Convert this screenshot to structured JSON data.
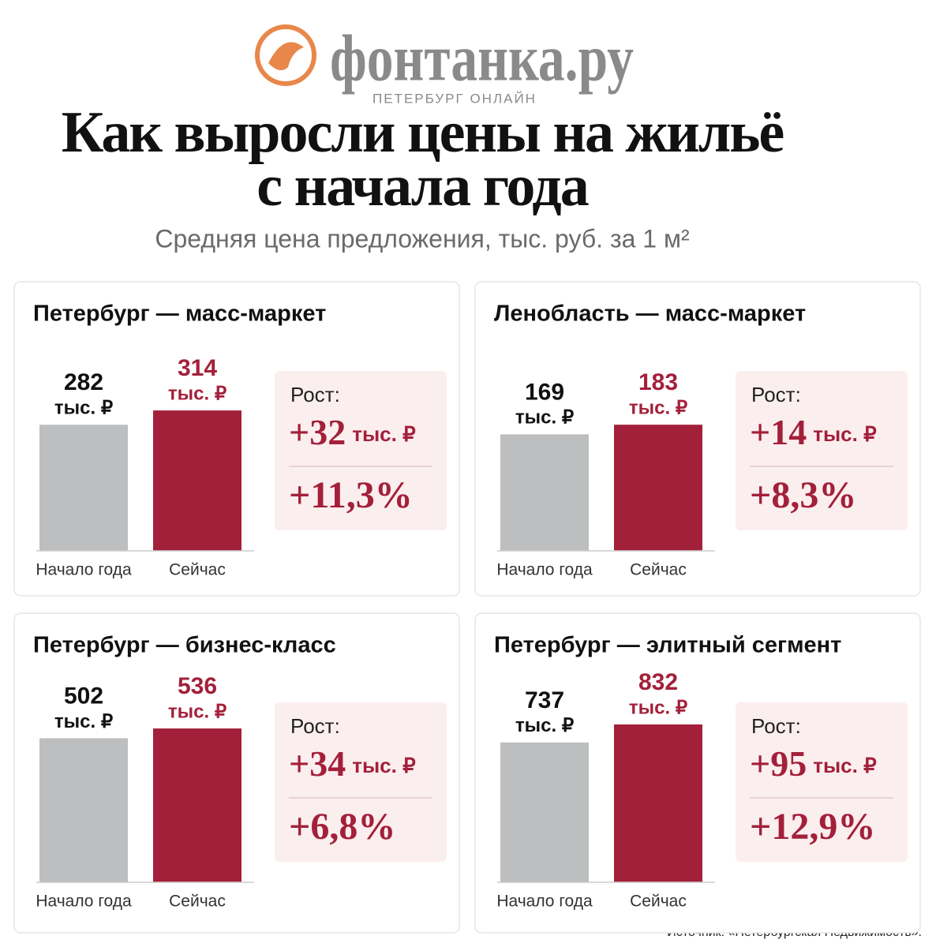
{
  "header": {
    "logo": "фонтанка.ру",
    "logo_sub": "ПЕТЕРБУРГ ОНЛАЙН"
  },
  "title": [
    "Как выросли цены на жильё",
    "с начала года"
  ],
  "subtitle": "Средняя цена предложения, тыс. руб. за 1 м²",
  "chart_data": [
    {
      "type": "bar",
      "title": "Петербург — масс-маркет",
      "categories": [
        "Начало года",
        "Сейчас"
      ],
      "values": [
        282,
        314
      ],
      "unit": "тыс. ₽",
      "colors": [
        "#bdbec0",
        "#a3203a"
      ],
      "ylim": [
        0,
        353
      ],
      "growth_label": "Рост:",
      "growth": {
        "value": 32,
        "label": "+32"
      },
      "growth_unit": "тыс. ₽",
      "growth_pct": {
        "value": 11.3,
        "label": "+11,3%"
      }
    },
    {
      "type": "bar",
      "title": "Ленобласть — масс-маркет",
      "categories": [
        "Начало года",
        "Сейчас"
      ],
      "values": [
        169,
        183
      ],
      "unit": "тыс. ₽",
      "colors": [
        "#bdbec0",
        "#a3203a"
      ],
      "ylim": [
        0,
        229
      ],
      "growth_label": "Рост:",
      "growth": {
        "value": 14,
        "label": "+14"
      },
      "growth_unit": "тыс. ₽",
      "growth_pct": {
        "value": 8.3,
        "label": "+8,3%"
      }
    },
    {
      "type": "bar",
      "title": "Петербург — бизнес-класс",
      "categories": [
        "Начало года",
        "Сейчас"
      ],
      "values": [
        502,
        536
      ],
      "unit": "тыс. ₽",
      "colors": [
        "#bdbec0",
        "#a3203a"
      ],
      "ylim": [
        0,
        550
      ],
      "growth_label": "Рост:",
      "growth": {
        "value": 34,
        "label": "+34"
      },
      "growth_unit": "тыс. ₽",
      "growth_pct": {
        "value": 6.8,
        "label": "+6,8%"
      }
    },
    {
      "type": "bar",
      "title": "Петербург — элитный сегмент",
      "categories": [
        "Начало года",
        "Сейчас"
      ],
      "values": [
        737,
        832
      ],
      "unit": "тыс. ₽",
      "colors": [
        "#bdbec0",
        "#a3203a"
      ],
      "ylim": [
        0,
        832
      ],
      "growth_label": "Рост:",
      "growth": {
        "value": 95,
        "label": "+95"
      },
      "growth_unit": "тыс. ₽",
      "growth_pct": {
        "value": 12.9,
        "label": "+12,9%"
      }
    }
  ],
  "source": "Источник: «Петербургская Недвижимость»."
}
